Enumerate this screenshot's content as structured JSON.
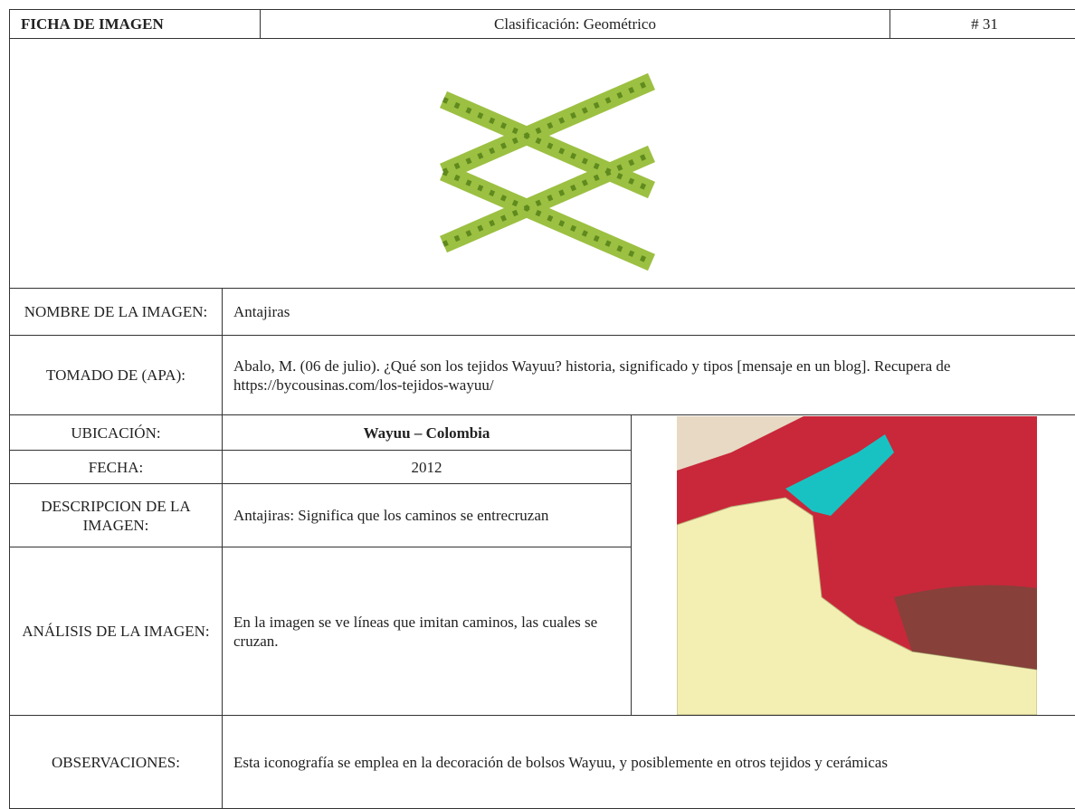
{
  "header": {
    "title": "FICHA DE IMAGEN",
    "classification": "Clasificación: Geométrico",
    "number": "# 31"
  },
  "rows": [
    {
      "label": "NOMBRE DE LA IMAGEN:",
      "value": "Antajiras"
    },
    {
      "label": "TOMADO DE (APA):",
      "value": "Abalo, M. (06 de julio). ¿Qué son los tejidos Wayuu? historia, significado y tipos [mensaje en un blog]. Recupera de https://bycousinas.com/los-tejidos-wayuu/"
    },
    {
      "label": "UBICACIÓN:",
      "value": "Wayuu – Colombia"
    },
    {
      "label": "FECHA:",
      "value": "2012"
    },
    {
      "label": "DESCRIPCION DE LA IMAGEN:",
      "value": "Antajiras: Significa que los caminos se entrecruzan"
    },
    {
      "label": "ANÁLISIS DE LA IMAGEN:",
      "value": "En la imagen se ve líneas que imitan caminos, las cuales se cruzan."
    },
    {
      "label": "OBSERVACIONES:",
      "value": "Esta iconografía se emplea en la decoración de bolsos Wayuu, y posiblemente en otros tejidos y cerámicas"
    }
  ]
}
